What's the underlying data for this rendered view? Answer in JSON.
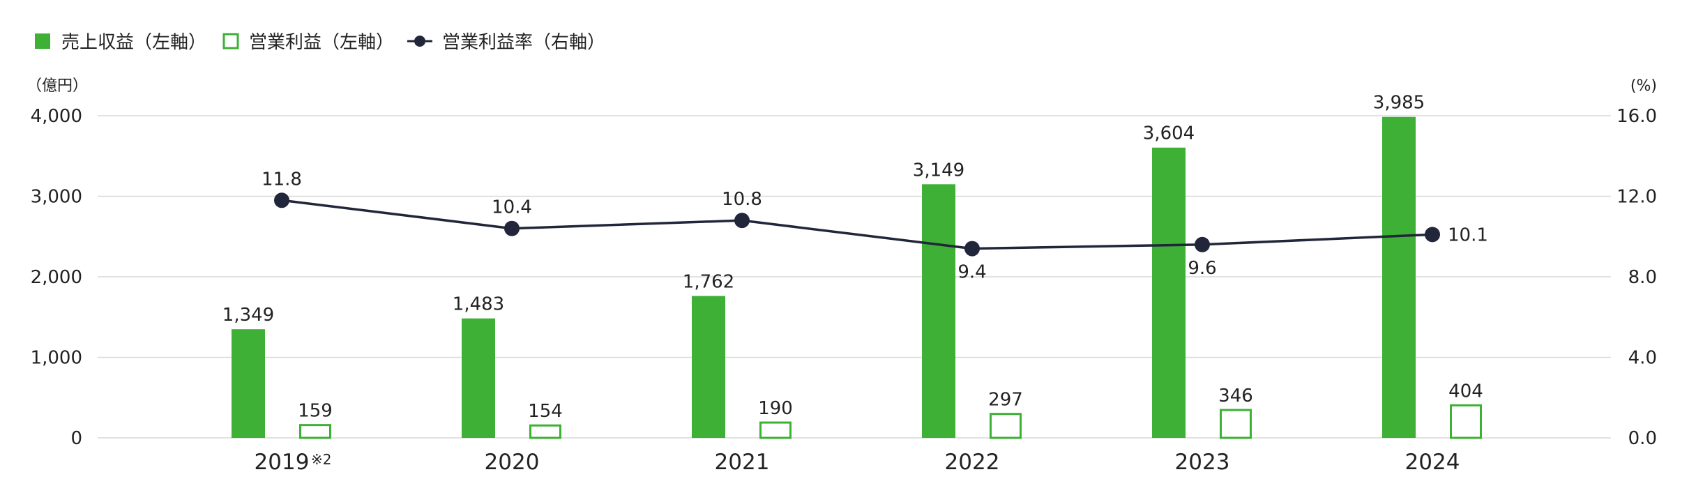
{
  "colors": {
    "revenue": "#3db035",
    "profit": "#3db035",
    "rate": "#22263a",
    "grid": "#d9d9d9",
    "text": "#222222"
  },
  "legend": {
    "revenue": "売上収益（左軸）",
    "profit": "営業利益（左軸）",
    "rate": "営業利益率（右軸）"
  },
  "chart_data": {
    "type": "bar",
    "categories": [
      "2019",
      "2020",
      "2021",
      "2022",
      "2023",
      "2024"
    ],
    "category_note": {
      "index": 0,
      "text": "※2"
    },
    "y_left": {
      "label": "（億円）",
      "range": [
        0,
        4000
      ],
      "ticks": [
        "0",
        "1,000",
        "2,000",
        "3,000",
        "4,000"
      ]
    },
    "y_right": {
      "label": "(%)",
      "range": [
        0,
        16
      ],
      "ticks": [
        "0.0",
        "4.0",
        "8.0",
        "12.0",
        "16.0"
      ]
    },
    "grid": true,
    "legend_position": "top-left",
    "series": [
      {
        "name": "売上収益（左軸）",
        "type": "bar",
        "style": "filled",
        "axis": "left",
        "values": [
          1349,
          1483,
          1762,
          3149,
          3604,
          3985
        ],
        "labels": [
          "1,349",
          "1,483",
          "1,762",
          "3,149",
          "3,604",
          "3,985"
        ]
      },
      {
        "name": "営業利益（左軸）",
        "type": "bar",
        "style": "outline",
        "axis": "left",
        "values": [
          159,
          154,
          190,
          297,
          346,
          404
        ],
        "labels": [
          "159",
          "154",
          "190",
          "297",
          "346",
          "404"
        ]
      },
      {
        "name": "営業利益率（右軸）",
        "type": "line",
        "axis": "right",
        "values": [
          11.8,
          10.4,
          10.8,
          9.4,
          9.6,
          10.1
        ],
        "labels": [
          "11.8",
          "10.4",
          "10.8",
          "9.4",
          "9.6",
          "10.1"
        ],
        "label_positions": [
          "above",
          "above",
          "above",
          "below",
          "below",
          "right"
        ]
      }
    ]
  }
}
